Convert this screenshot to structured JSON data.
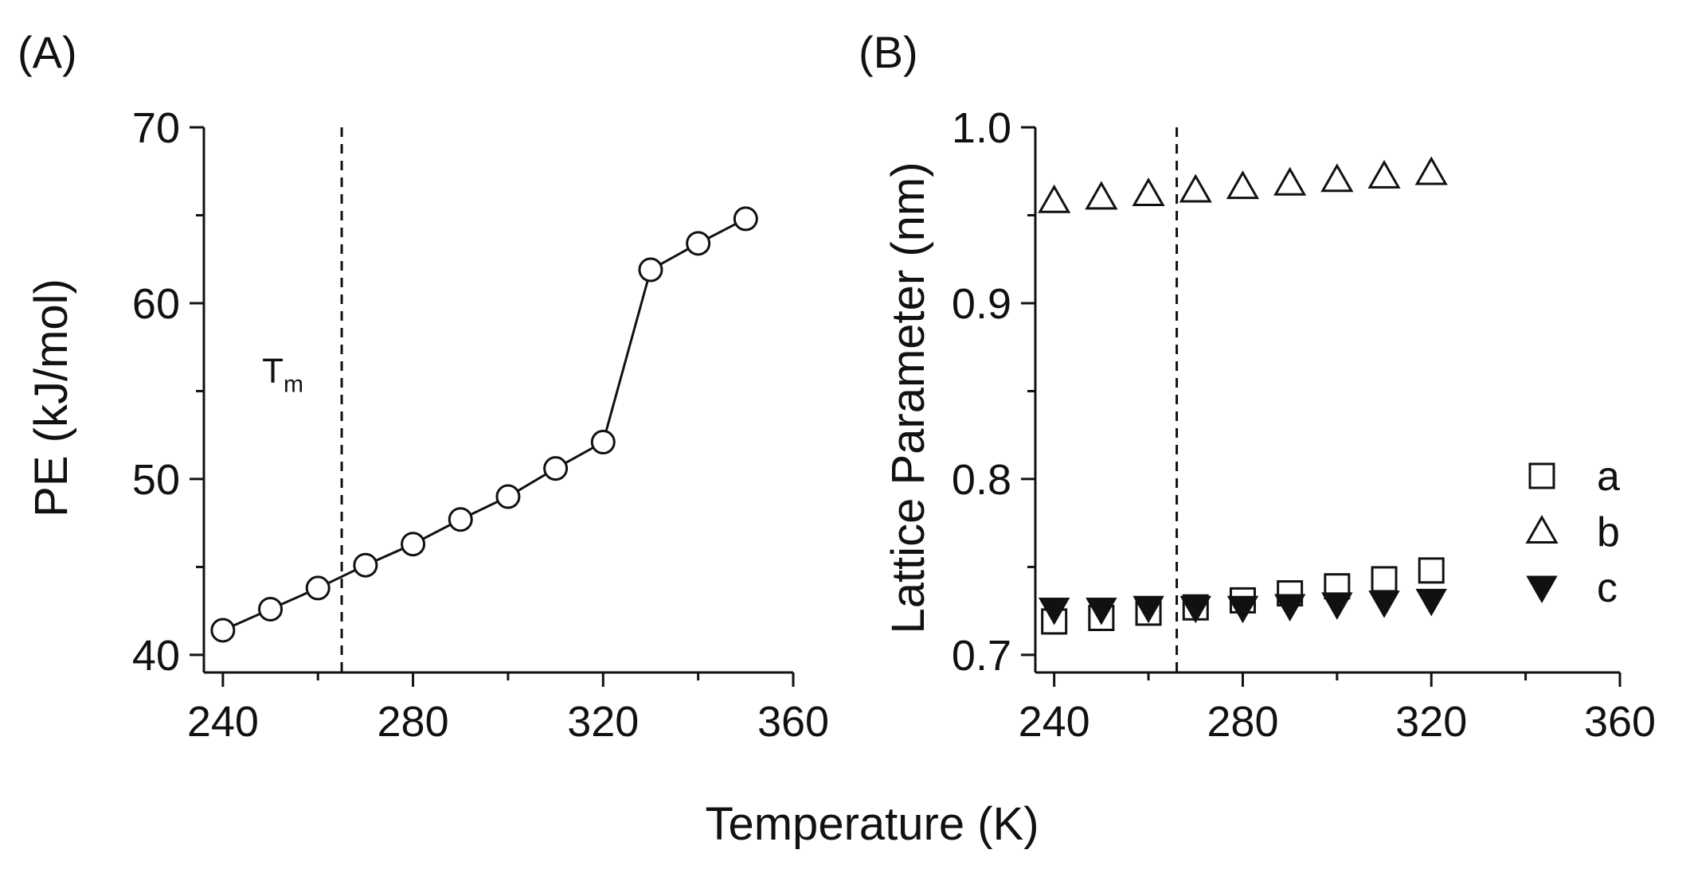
{
  "figure": {
    "shared_xlabel": "Temperature (K)"
  },
  "chart_data": [
    {
      "panel": "(A)",
      "type": "line",
      "title": "",
      "xlabel": "Temperature (K)",
      "ylabel": "PE (kJ/mol)",
      "xlim": [
        236,
        360
      ],
      "ylim": [
        39,
        70
      ],
      "xticks": [
        240,
        280,
        320,
        360
      ],
      "yticks": [
        40,
        50,
        60,
        70
      ],
      "grid": false,
      "series": [
        {
          "name": "PE",
          "marker": "open-circle",
          "x": [
            240,
            250,
            260,
            270,
            280,
            290,
            300,
            310,
            320,
            330,
            340,
            350
          ],
          "values": [
            41.4,
            42.6,
            43.8,
            45.1,
            46.3,
            47.7,
            49.0,
            50.6,
            52.1,
            61.9,
            63.4,
            64.8
          ]
        }
      ],
      "vline": {
        "x": 265,
        "style": "dashed"
      },
      "annotation": {
        "text": "T",
        "subscript": "m"
      }
    },
    {
      "panel": "(B)",
      "type": "scatter",
      "title": "",
      "xlabel": "Temperature (K)",
      "ylabel": "Lattice Parameter (nm)",
      "xlim": [
        236,
        360
      ],
      "ylim": [
        0.69,
        1.0
      ],
      "xticks": [
        240,
        280,
        320,
        360
      ],
      "yticks": [
        0.7,
        0.8,
        0.9,
        1.0
      ],
      "ytick_labels": [
        "0.7",
        "0.8",
        "0.9",
        "1.0"
      ],
      "grid": false,
      "legend_position": "right",
      "series": [
        {
          "name": "a",
          "marker": "open-square",
          "x": [
            240,
            250,
            260,
            270,
            280,
            290,
            300,
            310,
            320
          ],
          "values": [
            0.719,
            0.721,
            0.724,
            0.727,
            0.731,
            0.735,
            0.739,
            0.743,
            0.748
          ]
        },
        {
          "name": "b",
          "marker": "open-triangle-up",
          "x": [
            240,
            250,
            260,
            270,
            280,
            290,
            300,
            310,
            320
          ],
          "values": [
            0.958,
            0.96,
            0.962,
            0.964,
            0.966,
            0.968,
            0.97,
            0.972,
            0.974
          ]
        },
        {
          "name": "c",
          "marker": "filled-triangle-down",
          "x": [
            240,
            250,
            260,
            270,
            280,
            290,
            300,
            310,
            320
          ],
          "values": [
            0.726,
            0.726,
            0.727,
            0.727,
            0.727,
            0.728,
            0.729,
            0.73,
            0.731
          ]
        }
      ],
      "vline": {
        "x": 266,
        "style": "dashed"
      }
    }
  ]
}
